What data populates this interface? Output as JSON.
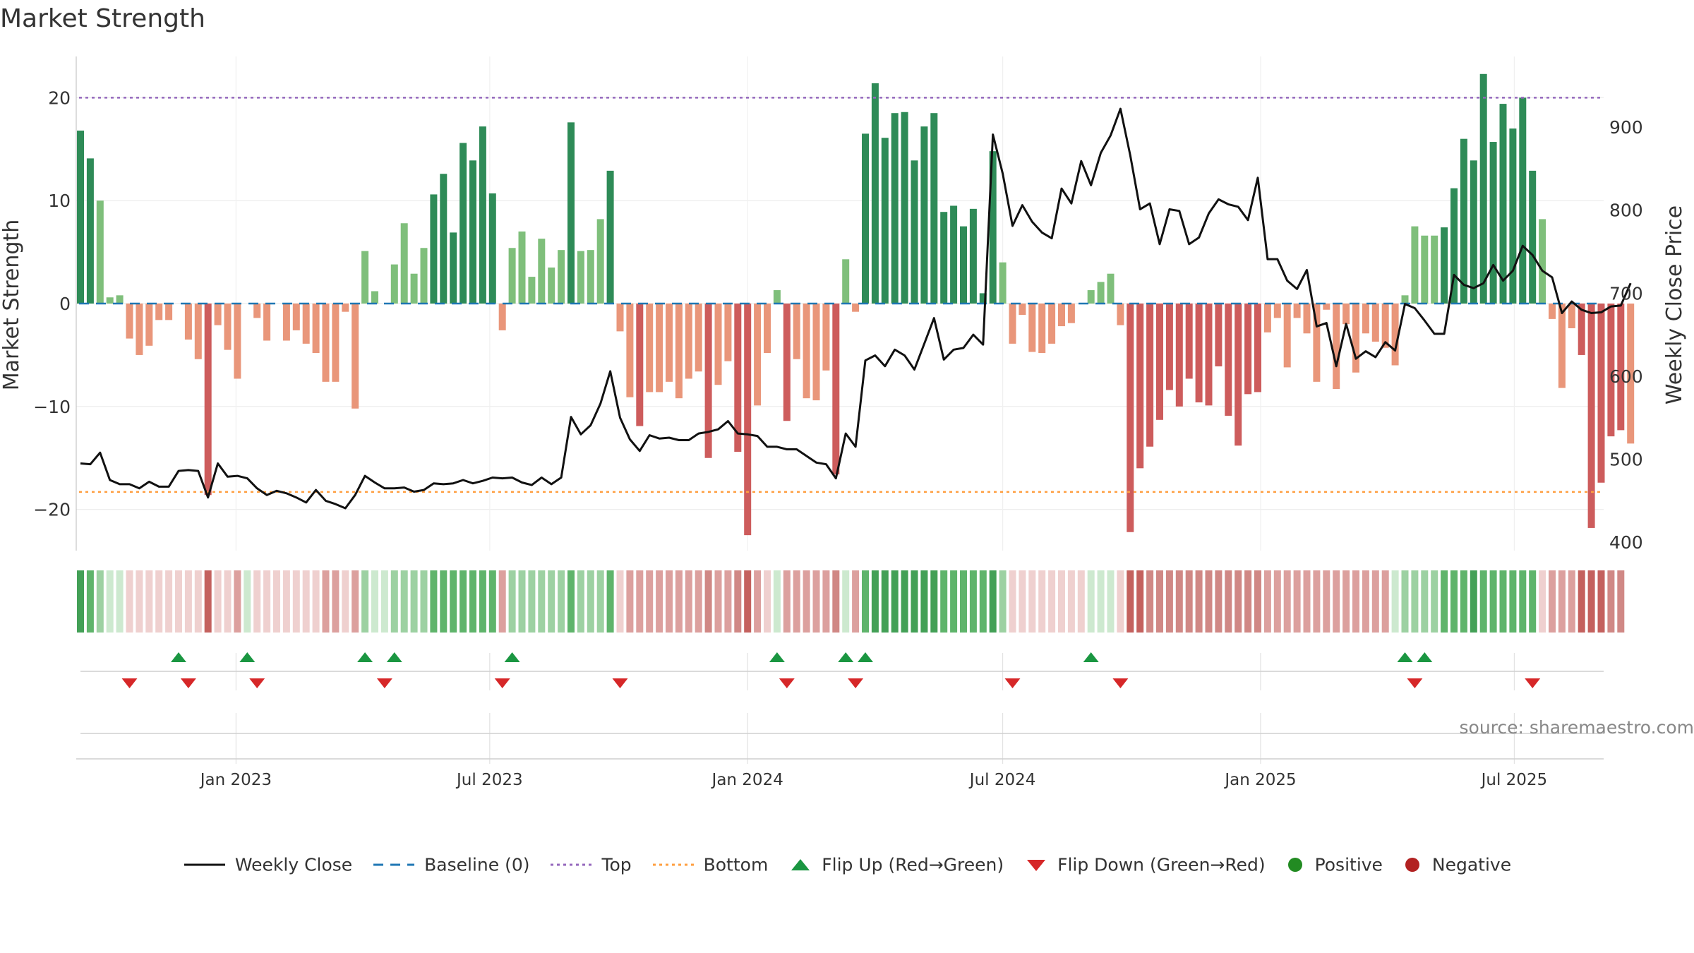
{
  "chart_data": {
    "type": "bar",
    "title": "Market Strength",
    "ylabel_left": "Market Strength",
    "ylabel_right": "Weekly Close Price",
    "left_ylim": [
      -24,
      24
    ],
    "left_yticks": [
      20,
      10,
      0,
      -10,
      -20
    ],
    "left_ytick_labels": [
      "20",
      "10",
      "0",
      "−10",
      "−20"
    ],
    "right_ylim": [
      390,
      985
    ],
    "right_yticks": [
      900,
      800,
      700,
      600,
      500,
      400
    ],
    "top_line": 20,
    "bottom_line": -18.3,
    "x_start": "2022-09-12",
    "week_step_days": 7,
    "x_ticks": [
      {
        "label": "Jan 2023",
        "date": "2023-01-01"
      },
      {
        "label": "Jul 2023",
        "date": "2023-07-01"
      },
      {
        "label": "Jan 2024",
        "date": "2024-01-01"
      },
      {
        "label": "Jul 2024",
        "date": "2024-07-01"
      },
      {
        "label": "Jan 2025",
        "date": "2025-01-01"
      },
      {
        "label": "Jul 2025",
        "date": "2025-07-01"
      }
    ],
    "strength": [
      16.8,
      14.1,
      10,
      0.6,
      0.8,
      -3.4,
      -5,
      -4.1,
      -1.6,
      -1.6,
      0,
      -3.5,
      -5.4,
      -18.6,
      -2.1,
      -4.5,
      -7.3,
      0,
      -1.4,
      -3.6,
      0,
      -3.6,
      -2.6,
      -3.9,
      -4.8,
      -7.6,
      -7.6,
      -0.8,
      -10.2,
      5.1,
      1.2,
      0,
      3.8,
      7.8,
      2.9,
      5.4,
      10.6,
      12.6,
      6.9,
      15.6,
      13.9,
      17.2,
      10.7,
      -2.6,
      5.4,
      7,
      2.6,
      6.3,
      3.5,
      5.2,
      17.6,
      5.1,
      5.2,
      8.2,
      12.9,
      -2.7,
      -9.1,
      -11.9,
      -8.6,
      -8.6,
      -7.6,
      -9.2,
      -7.3,
      -6.6,
      -15,
      -7.9,
      -5.6,
      -14.4,
      -22.5,
      -9.9,
      -4.8,
      1.3,
      -11.4,
      -5.4,
      -9.2,
      -9.4,
      -6.5,
      -16.6,
      4.3,
      -0.8,
      16.5,
      21.4,
      16.1,
      18.5,
      18.6,
      13.9,
      17.2,
      18.5,
      8.9,
      9.5,
      7.5,
      9.2,
      1,
      14.8,
      4,
      -3.9,
      -1.1,
      -4.7,
      -4.8,
      -3.9,
      -2.2,
      -1.9,
      0,
      1.3,
      2.1,
      2.9,
      -2.1,
      -22.2,
      -16,
      -13.9,
      -11.3,
      -8.4,
      -10,
      -7.3,
      -9.6,
      -9.9,
      -6.1,
      -10.9,
      -13.8,
      -8.8,
      -8.6,
      -2.8,
      -1.4,
      -6.2,
      -1.4,
      -2.9,
      -7.6,
      -0.6,
      -8.3,
      -2,
      -6.7,
      -2.9,
      -3.7,
      -4.3,
      -6,
      0.8,
      7.5,
      6.6,
      6.6,
      7.4,
      11.2,
      16,
      13.9,
      22.3,
      15.7,
      19.4,
      17,
      20,
      12.9,
      8.2,
      -1.5,
      -8.2,
      -2.4,
      -5,
      -21.8,
      -17.4,
      -12.9,
      -12.3,
      -13.6
    ],
    "weekly_close": [
      495,
      494,
      508,
      475,
      470,
      470,
      465,
      473,
      467,
      467,
      486,
      487,
      486,
      454,
      495,
      479,
      480,
      477,
      465,
      457,
      462,
      459,
      454,
      448,
      463,
      450,
      446,
      441,
      457,
      480,
      472,
      465,
      465,
      466,
      461,
      463,
      471,
      470,
      471,
      475,
      471,
      474,
      478,
      477,
      478,
      472,
      469,
      478,
      470,
      478,
      551,
      530,
      541,
      567,
      606,
      550,
      524,
      510,
      529,
      525,
      526,
      523,
      523,
      531,
      533,
      536,
      546,
      531,
      530,
      528,
      515,
      515,
      512,
      512,
      504,
      496,
      494,
      477,
      531,
      515,
      619,
      625,
      612,
      632,
      625,
      608,
      639,
      670,
      620,
      632,
      634,
      650,
      638,
      891,
      844,
      781,
      806,
      786,
      773,
      766,
      826,
      808,
      859,
      830,
      869,
      890,
      922,
      866,
      801,
      808,
      759,
      801,
      799,
      759,
      767,
      796,
      813,
      807,
      804,
      788,
      839,
      741,
      741,
      715,
      705,
      728,
      660,
      664,
      612,
      663,
      621,
      630,
      623,
      641,
      631,
      687,
      682,
      667,
      651,
      651,
      722,
      710,
      706,
      712,
      734,
      715,
      727,
      757,
      746,
      727,
      719,
      676,
      690,
      680,
      676,
      677,
      684,
      685,
      712
    ],
    "shade": [
      4,
      3,
      2,
      1,
      1,
      -1,
      -1,
      -1,
      -1,
      -1,
      -1,
      -1,
      -1,
      -4,
      -1,
      -1,
      -2,
      1,
      -1,
      -1,
      -1,
      -1,
      -1,
      -1,
      -1,
      -2,
      -2,
      -1,
      -2,
      2,
      1,
      1,
      2,
      2,
      2,
      2,
      3,
      3,
      3,
      3,
      3,
      3,
      3,
      -2,
      2,
      2,
      2,
      2,
      2,
      2,
      3,
      2,
      2,
      2,
      3,
      -1,
      -2,
      -2,
      -2,
      -2,
      -2,
      -2,
      -2,
      -2,
      -3,
      -2,
      -2,
      -3,
      -4,
      -2,
      -1,
      1,
      -2,
      -2,
      -2,
      -2,
      -2,
      -3,
      1,
      -2,
      3,
      4,
      4,
      4,
      4,
      4,
      4,
      4,
      3,
      3,
      3,
      3,
      3,
      4,
      2,
      -1,
      -1,
      -1,
      -1,
      -1,
      -1,
      -1,
      -1,
      1,
      1,
      1,
      -1,
      -4,
      -4,
      -3,
      -3,
      -3,
      -3,
      -3,
      -3,
      -3,
      -3,
      -3,
      -3,
      -3,
      -3,
      -2,
      -2,
      -2,
      -2,
      -2,
      -2,
      -2,
      -2,
      -2,
      -2,
      -2,
      -2,
      -2,
      1,
      2,
      2,
      2,
      2,
      3,
      3,
      3,
      4,
      3,
      3,
      3,
      3,
      3,
      3,
      -1,
      -2,
      -2,
      -2,
      -4,
      -4,
      -4,
      -3,
      -3
    ],
    "flip_up": [
      10,
      17,
      29,
      32,
      44,
      71,
      78,
      80,
      103,
      135,
      137
    ],
    "flip_down": [
      5,
      11,
      18,
      31,
      43,
      55,
      72,
      79,
      95,
      106,
      136,
      148
    ],
    "legend": [
      {
        "key": "weekly-close",
        "label": "Weekly Close"
      },
      {
        "key": "baseline",
        "label": "Baseline (0)"
      },
      {
        "key": "top",
        "label": "Top"
      },
      {
        "key": "bottom",
        "label": "Bottom"
      },
      {
        "key": "flip-up",
        "label": "Flip Up (Red→Green)"
      },
      {
        "key": "flip-down",
        "label": "Flip Down (Green→Red)"
      },
      {
        "key": "positive",
        "label": "Positive"
      },
      {
        "key": "negative",
        "label": "Negative"
      }
    ],
    "source": "source: sharemaestro.com"
  },
  "colors": {
    "pos_strong": "#2e8b57",
    "pos_light": "#7fbf7b",
    "neg_strong": "#cd5c5c",
    "neg_light": "#e9967a",
    "line": "#111111",
    "baseline": "#1f77b4",
    "top": "#9467bd",
    "bottom": "#ff9f40",
    "flip_up": "#1a9641",
    "flip_down": "#d62728",
    "positive": "#228b22",
    "negative": "#b22222"
  }
}
